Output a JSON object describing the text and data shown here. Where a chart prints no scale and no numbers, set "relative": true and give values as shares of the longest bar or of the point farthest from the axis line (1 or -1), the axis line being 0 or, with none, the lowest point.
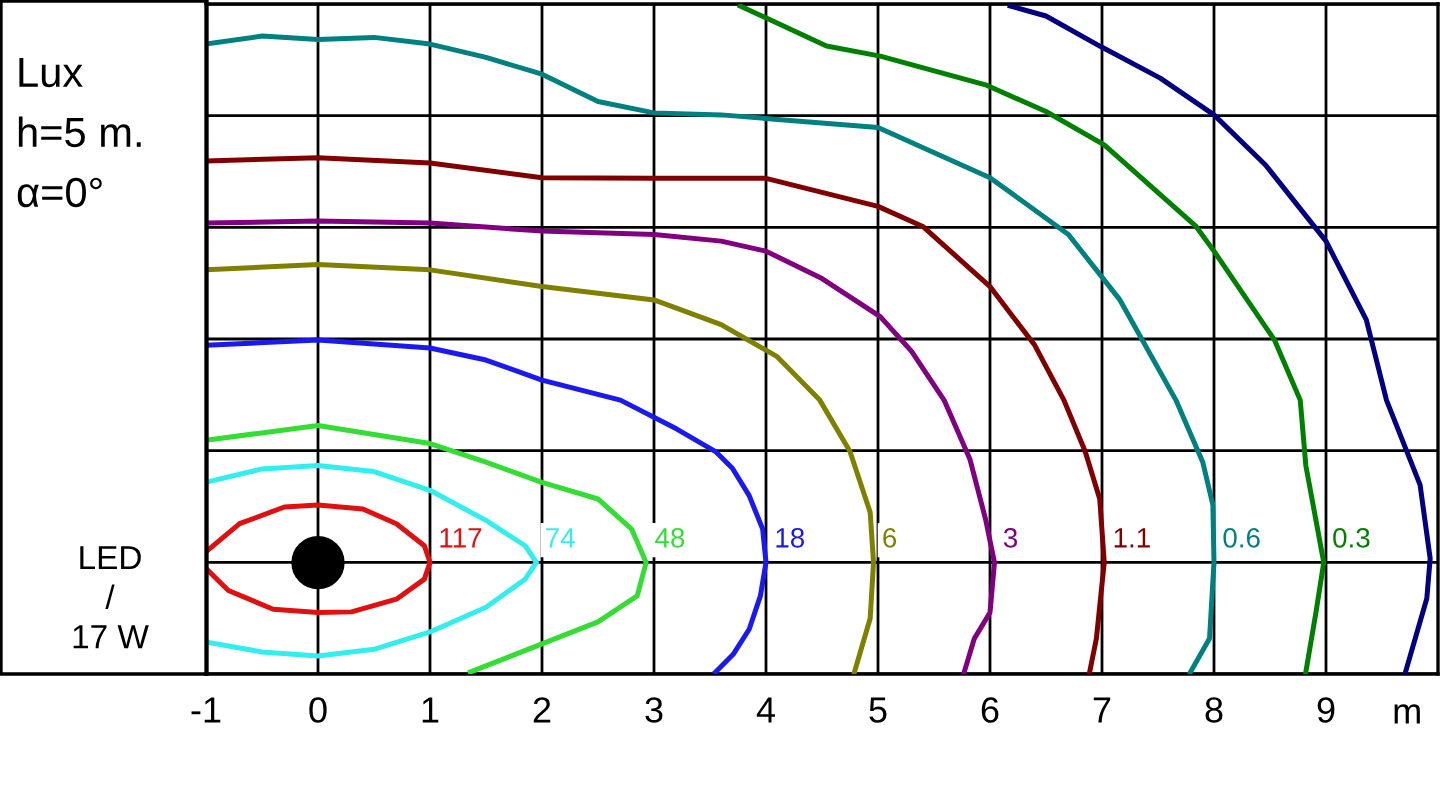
{
  "chart_data": {
    "type": "line",
    "xlabel": "m",
    "xlim": [
      -1,
      10
    ],
    "relative": true,
    "xticks": [
      -1,
      0,
      1,
      2,
      3,
      4,
      5,
      6,
      7,
      8,
      9
    ],
    "tick_labels": "x",
    "grid": true,
    "marker": "none",
    "line_style": "solid",
    "annotations": [
      "Lux",
      "h=5 m.",
      "α=0°",
      "LED\n/\n17 W"
    ],
    "series": [
      {
        "name": "117",
        "color": "#e01010",
        "x": [
          -1,
          -0.7,
          -0.3,
          0,
          0.4,
          0.7,
          0.95,
          1,
          0.95,
          0.7,
          0.3,
          0,
          -0.4,
          -0.8,
          -1
        ],
        "values": [
          0.183,
          0.225,
          0.25,
          0.253,
          0.247,
          0.225,
          0.192,
          0.167,
          0.142,
          0.112,
          0.093,
          0.092,
          0.097,
          0.125,
          0.158
        ]
      },
      {
        "name": "74",
        "color": "#33eeee",
        "x": [
          -1,
          -0.5,
          0,
          0.5,
          1,
          1.5,
          1.85,
          1.95,
          1.85,
          1.5,
          1,
          0.5,
          0,
          -0.5,
          -1
        ],
        "values": [
          0.287,
          0.307,
          0.312,
          0.303,
          0.275,
          0.23,
          0.192,
          0.167,
          0.142,
          0.1,
          0.063,
          0.037,
          0.027,
          0.033,
          0.048
        ]
      },
      {
        "name": "48",
        "color": "#33dd33",
        "x": [
          -1,
          0,
          1,
          1.5,
          2,
          2.5,
          2.8,
          2.93,
          2.85,
          2.5,
          2,
          1.36
        ],
        "values": [
          0.35,
          0.372,
          0.345,
          0.317,
          0.287,
          0.262,
          0.217,
          0.167,
          0.117,
          0.078,
          0.045,
          0.003
        ]
      },
      {
        "name": "18",
        "color": "#1a1aee",
        "x": [
          -1,
          0,
          1,
          1.5,
          2,
          2.7,
          3.2,
          3.55,
          3.7,
          3.85,
          3.97,
          4,
          3.95,
          3.85,
          3.71,
          3.55
        ],
        "values": [
          0.492,
          0.5,
          0.488,
          0.47,
          0.44,
          0.41,
          0.367,
          0.333,
          0.308,
          0.267,
          0.217,
          0.167,
          0.117,
          0.067,
          0.03,
          0.003
        ]
      },
      {
        "name": "6",
        "color": "#808000",
        "x": [
          -1,
          0,
          1,
          2,
          3,
          3.6,
          4.1,
          4.48,
          4.75,
          4.93,
          4.96,
          4.93,
          4.79
        ],
        "values": [
          0.605,
          0.613,
          0.605,
          0.58,
          0.56,
          0.523,
          0.475,
          0.41,
          0.333,
          0.242,
          0.167,
          0.083,
          0.003
        ]
      },
      {
        "name": "3",
        "color": "#800080",
        "x": [
          -1,
          0,
          1,
          2,
          3,
          3.6,
          4,
          4.5,
          5.02,
          5.3,
          5.59,
          5.82,
          5.96,
          6.04,
          6,
          5.86,
          5.77
        ],
        "values": [
          0.675,
          0.678,
          0.675,
          0.663,
          0.658,
          0.648,
          0.633,
          0.592,
          0.535,
          0.483,
          0.41,
          0.322,
          0.232,
          0.167,
          0.092,
          0.053,
          0.003
        ]
      },
      {
        "name": "1.1",
        "color": "#800000",
        "x": [
          -1,
          0,
          1,
          2,
          3,
          4,
          5,
          5.4,
          6,
          6.4,
          6.66,
          6.85,
          6.98,
          7.02,
          6.95,
          6.89
        ],
        "values": [
          0.768,
          0.773,
          0.765,
          0.743,
          0.742,
          0.742,
          0.7,
          0.67,
          0.58,
          0.492,
          0.41,
          0.333,
          0.262,
          0.167,
          0.053,
          0.003
        ]
      },
      {
        "name": "0.6",
        "color": "#008080",
        "x": [
          -1,
          -0.5,
          0,
          0.5,
          1,
          1.5,
          2,
          2.5,
          3,
          3.6,
          5,
          6,
          6.7,
          7.16,
          7.66,
          7.9,
          7.99,
          8.0,
          7.96,
          7.79
        ],
        "values": [
          0.943,
          0.955,
          0.95,
          0.953,
          0.943,
          0.923,
          0.898,
          0.857,
          0.84,
          0.837,
          0.818,
          0.743,
          0.658,
          0.56,
          0.41,
          0.317,
          0.253,
          0.167,
          0.053,
          0.003
        ]
      },
      {
        "name": "0.3",
        "color": "#008000",
        "x": [
          3.77,
          4.54,
          5.02,
          5.96,
          6.5,
          7.02,
          7.84,
          8.0,
          8.54,
          8.77,
          8.82,
          8.98,
          8.91,
          8.82
        ],
        "values": [
          1.0,
          0.94,
          0.925,
          0.882,
          0.842,
          0.792,
          0.67,
          0.633,
          0.5,
          0.41,
          0.312,
          0.167,
          0.092,
          0.003
        ]
      },
      {
        "color": "#000080",
        "x": [
          6.18,
          6.5,
          6.98,
          7.52,
          8.0,
          8.46,
          9.0,
          9.36,
          9.54,
          9.84,
          9.93,
          9.9,
          9.71
        ],
        "values": [
          1.0,
          0.985,
          0.94,
          0.892,
          0.837,
          0.762,
          0.648,
          0.53,
          0.41,
          0.283,
          0.173,
          0.113,
          0.003
        ]
      }
    ]
  }
}
